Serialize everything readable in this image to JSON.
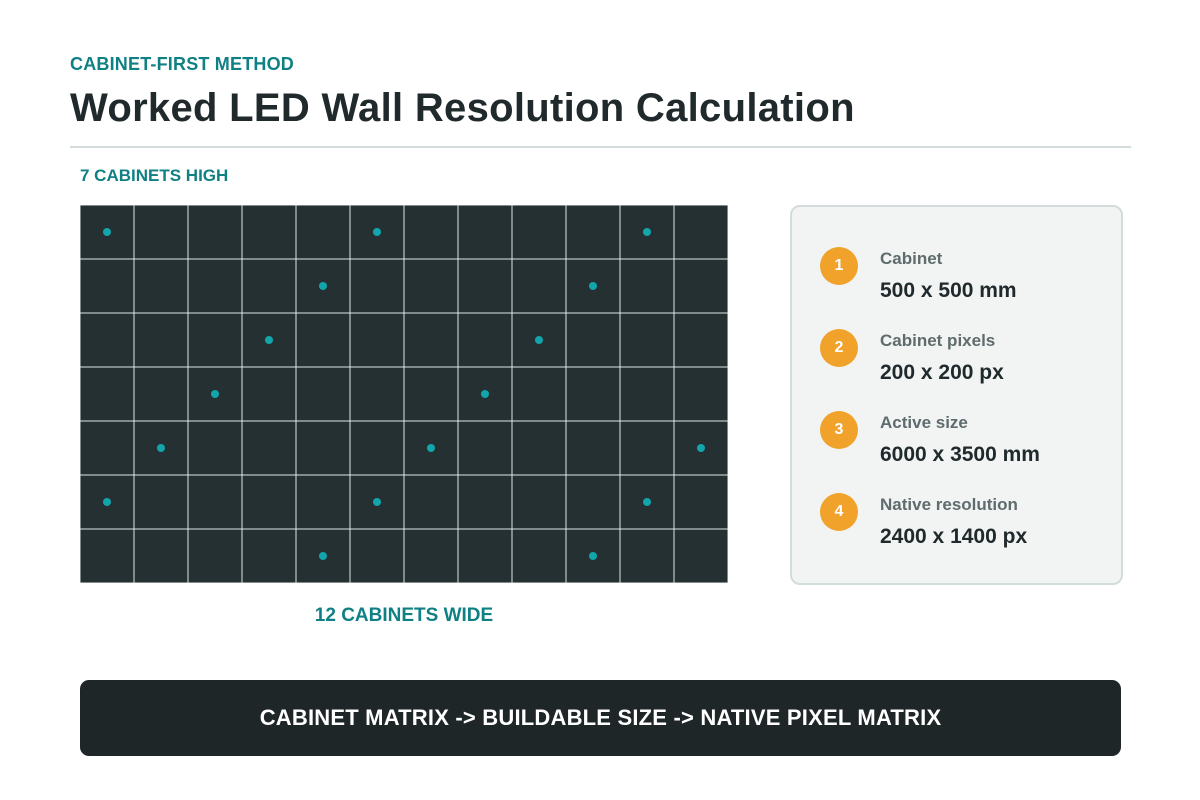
{
  "header": {
    "eyebrow": "CABINET-FIRST METHOD",
    "title": "Worked LED Wall Resolution Calculation"
  },
  "matrix": {
    "columns": 12,
    "rows": 7,
    "height_label": "7 CABINETS HIGH",
    "width_label": "12 CABINETS WIDE",
    "dot_color": "#12a5ab",
    "cabinet_fill": "#253033",
    "seam_color": "#dfe6e6",
    "marked_cabinets": [
      [
        0,
        0
      ],
      [
        5,
        0
      ],
      [
        10,
        0
      ],
      [
        4,
        1
      ],
      [
        9,
        1
      ],
      [
        3,
        2
      ],
      [
        8,
        2
      ],
      [
        2,
        3
      ],
      [
        7,
        3
      ],
      [
        1,
        4
      ],
      [
        6,
        4
      ],
      [
        11,
        4
      ],
      [
        0,
        5
      ],
      [
        5,
        5
      ],
      [
        10,
        5
      ],
      [
        4,
        6
      ],
      [
        9,
        6
      ]
    ]
  },
  "specs": [
    {
      "number": "1",
      "label": "Cabinet",
      "value": "500 x 500 mm"
    },
    {
      "number": "2",
      "label": "Cabinet pixels",
      "value": "200 x 200 px"
    },
    {
      "number": "3",
      "label": "Active size",
      "value": "6000 x 3500 mm"
    },
    {
      "number": "4",
      "label": "Native resolution",
      "value": "2400 x 1400 px"
    }
  ],
  "banner": {
    "text": "CABINET MATRIX -> BUILDABLE SIZE -> NATIVE PIXEL MATRIX"
  },
  "colors": {
    "accent": "#0f8083",
    "badge": "#f0a22a",
    "dark": "#1f2628"
  }
}
